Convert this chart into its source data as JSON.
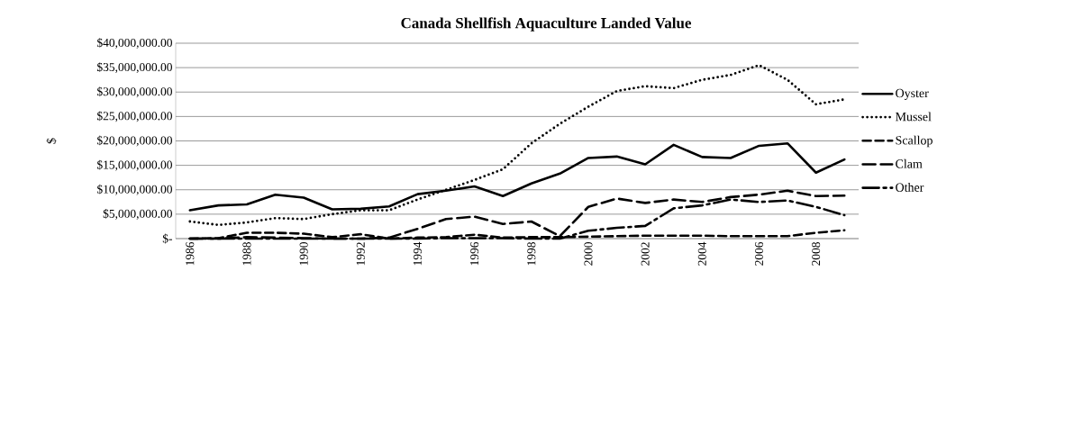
{
  "chart_data": {
    "type": "line",
    "title": "Canada Shellfish Aquaculture Landed Value",
    "ylabel": "$",
    "x": [
      1986,
      1987,
      1988,
      1989,
      1990,
      1991,
      1992,
      1993,
      1994,
      1995,
      1996,
      1997,
      1998,
      1999,
      2000,
      2001,
      2002,
      2003,
      2004,
      2005,
      2006,
      2007,
      2008,
      2009
    ],
    "series": [
      {
        "name": "Oyster",
        "color": "#000000",
        "line_style": "solid",
        "values": [
          5800000,
          6800000,
          7000000,
          9000000,
          8400000,
          6000000,
          6100000,
          6600000,
          9100000,
          9800000,
          10700000,
          8700000,
          11300000,
          13300000,
          16500000,
          16800000,
          15200000,
          19200000,
          16700000,
          16500000,
          19000000,
          19500000,
          13500000,
          16200000
        ]
      },
      {
        "name": "Mussel",
        "color": "#000000",
        "line_style": "dotted",
        "values": [
          3500000,
          2800000,
          3300000,
          4200000,
          4000000,
          5000000,
          5800000,
          5800000,
          8000000,
          10000000,
          12000000,
          14200000,
          19500000,
          23500000,
          27000000,
          30200000,
          31200000,
          30800000,
          32500000,
          33500000,
          35500000,
          32500000,
          27500000,
          28500000
        ]
      },
      {
        "name": "Scallop",
        "color": "#000000",
        "line_style": "dashed",
        "values": [
          0,
          100000,
          1200000,
          1200000,
          1000000,
          300000,
          900000,
          0,
          200000,
          300000,
          800000,
          200000,
          300000,
          300000,
          400000,
          500000,
          600000,
          600000,
          600000,
          500000,
          500000,
          500000,
          1200000,
          1700000
        ]
      },
      {
        "name": "Clam",
        "color": "#000000",
        "line_style": "dashed",
        "values": [
          0,
          0,
          300000,
          200000,
          100000,
          0,
          0,
          200000,
          2000000,
          4000000,
          4500000,
          3000000,
          3500000,
          500000,
          6500000,
          8200000,
          7300000,
          8000000,
          7500000,
          8500000,
          9000000,
          9800000,
          8700000,
          8800000
        ]
      },
      {
        "name": "Other",
        "color": "#000000",
        "line_style": "dashed",
        "values": [
          0,
          0,
          0,
          0,
          0,
          0,
          0,
          0,
          0,
          100000,
          100000,
          100000,
          0,
          0,
          1600000,
          2200000,
          2600000,
          6200000,
          6800000,
          8000000,
          7500000,
          7800000,
          6500000,
          4800000
        ]
      }
    ],
    "xlim": [
      1985.5,
      2009.5
    ],
    "xticks": [
      1986,
      1988,
      1990,
      1992,
      1994,
      1996,
      1998,
      2000,
      2002,
      2004,
      2006,
      2008
    ],
    "ylim": [
      0,
      40000000
    ],
    "yticks": [
      {
        "value": 0,
        "label": "$-"
      },
      {
        "value": 5000000,
        "label": "$5,000,000.00"
      },
      {
        "value": 10000000,
        "label": "$10,000,000.00"
      },
      {
        "value": 15000000,
        "label": "$15,000,000.00"
      },
      {
        "value": 20000000,
        "label": "$20,000,000.00"
      },
      {
        "value": 25000000,
        "label": "$25,000,000.00"
      },
      {
        "value": 30000000,
        "label": "$30,000,000.00"
      },
      {
        "value": 35000000,
        "label": "$35,000,000.00"
      },
      {
        "value": 40000000,
        "label": "$40,000,000.00"
      }
    ],
    "grid": "y",
    "legend": "right",
    "marker": "none"
  }
}
